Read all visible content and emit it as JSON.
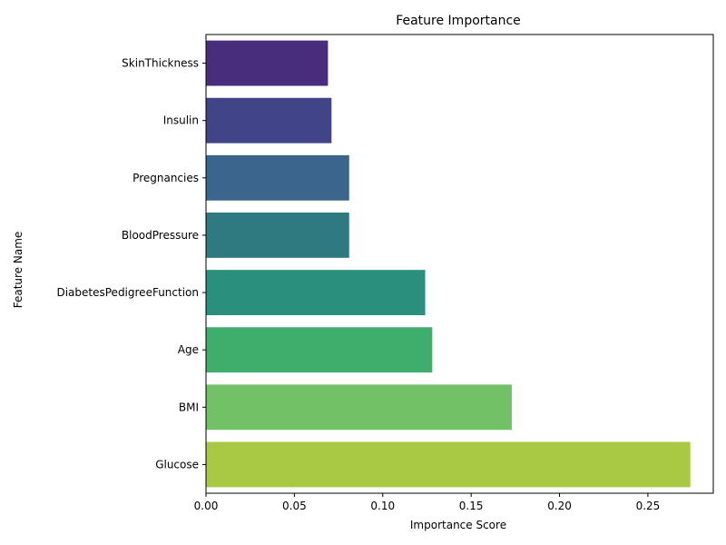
{
  "chart_data": {
    "type": "bar",
    "orientation": "horizontal",
    "title": "Feature Importance",
    "xlabel": "Importance Score",
    "ylabel": "Feature Name",
    "xlim": [
      0,
      0.287
    ],
    "xticks": [
      0.0,
      0.05,
      0.1,
      0.15,
      0.2,
      0.25
    ],
    "xtick_labels": [
      "0.00",
      "0.05",
      "0.10",
      "0.15",
      "0.20",
      "0.25"
    ],
    "grid": false,
    "categories": [
      "SkinThickness",
      "Insulin",
      "Pregnancies",
      "BloodPressure",
      "DiabetesPedigreeFunction",
      "Age",
      "BMI",
      "Glucose"
    ],
    "values": [
      0.069,
      0.071,
      0.081,
      0.081,
      0.124,
      0.128,
      0.173,
      0.274
    ],
    "colors": [
      "#472d7b",
      "#414487",
      "#3b658d",
      "#2f7a80",
      "#2a8f7c",
      "#3fae6d",
      "#73c166",
      "#a9c843"
    ]
  }
}
